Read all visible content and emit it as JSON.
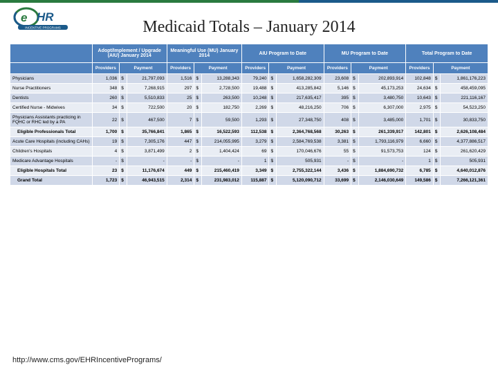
{
  "title": "Medicaid Totals – January 2014",
  "footer_link": "http://www.cms.gov/EHRIncentivePrograms/",
  "colors": {
    "header_bg": "#4f81bd",
    "header_fg": "#ffffff",
    "band_a": "#d0d8e8",
    "band_b": "#e9edf4",
    "border": "#ffffff",
    "green": "#2a7a3f",
    "blue": "#1b5a8a"
  },
  "column_groups": [
    {
      "label": "Adopt/Implement / Upgrade (AIU) January 2014"
    },
    {
      "label": "Meaningful Use (MU) January 2014"
    },
    {
      "label": "AIU Program to Date"
    },
    {
      "label": "MU Program to Date"
    },
    {
      "label": "Total Program to Date"
    }
  ],
  "sub_headers": {
    "providers": "Providers",
    "payment": "Payment"
  },
  "rows": [
    {
      "band": "a",
      "label": "Physicians",
      "cells": [
        "1,036",
        "$",
        "21,797,093",
        "1,516",
        "$",
        "13,288,343",
        "79,240",
        "$",
        "1,658,282,309",
        "23,608",
        "$",
        "202,893,914",
        "102,848",
        "$",
        "1,861,176,223"
      ]
    },
    {
      "band": "b",
      "label": "Nurse Practitioners",
      "cells": [
        "348",
        "$",
        "7,268,915",
        "297",
        "$",
        "2,728,500",
        "19,488",
        "$",
        "413,285,842",
        "5,146",
        "$",
        "45,173,253",
        "24,634",
        "$",
        "458,459,095"
      ]
    },
    {
      "band": "a",
      "label": "Dentists",
      "cells": [
        "260",
        "$",
        "5,510,833",
        "25",
        "$",
        "263,500",
        "10,248",
        "$",
        "217,635,417",
        "395",
        "$",
        "3,480,750",
        "10,643",
        "$",
        "221,116,167"
      ]
    },
    {
      "band": "b",
      "label": "Certified Nurse - Midwives",
      "cells": [
        "34",
        "$",
        "722,500",
        "20",
        "$",
        "182,750",
        "2,269",
        "$",
        "48,216,250",
        "706",
        "$",
        "6,307,000",
        "2,975",
        "$",
        "54,523,250"
      ]
    },
    {
      "band": "a",
      "label": "Physicians Assistants practicing in FQHC or RHC led by a PA",
      "cells": [
        "22",
        "$",
        "467,500",
        "7",
        "$",
        "59,500",
        "1,293",
        "$",
        "27,348,750",
        "408",
        "$",
        "3,485,000",
        "1,701",
        "$",
        "30,833,750"
      ]
    },
    {
      "band": "b",
      "label": "Eligible Professionals Total",
      "indent": true,
      "bold": true,
      "cells": [
        "1,700",
        "$",
        "35,766,841",
        "1,865",
        "$",
        "16,522,593",
        "112,538",
        "$",
        "2,364,768,568",
        "30,263",
        "$",
        "261,339,917",
        "142,801",
        "$",
        "2,626,108,484"
      ]
    },
    {
      "band": "a",
      "label": "Acute Care Hospitals (including CAHs)",
      "cells": [
        "19",
        "$",
        "7,305,176",
        "447",
        "$",
        "214,055,995",
        "3,279",
        "$",
        "2,584,769,538",
        "3,381",
        "$",
        "1,793,116,979",
        "6,660",
        "$",
        "4,377,886,517"
      ]
    },
    {
      "band": "b",
      "label": "Children's Hospitals",
      "cells": [
        "4",
        "$",
        "3,871,499",
        "2",
        "$",
        "1,404,424",
        "69",
        "$",
        "170,046,676",
        "55",
        "$",
        "91,573,753",
        "124",
        "$",
        "261,620,429"
      ]
    },
    {
      "band": "a",
      "label": "Medicare Advantage Hospitals",
      "cells": [
        "-",
        "$",
        "-",
        "-",
        "$",
        "-",
        "1",
        "$",
        "505,931",
        "-",
        "$",
        "-",
        "1",
        "$",
        "505,931"
      ]
    },
    {
      "band": "b",
      "label": "Eligible Hospitals Total",
      "indent": true,
      "bold": true,
      "cells": [
        "23",
        "$",
        "11,176,674",
        "449",
        "$",
        "215,460,419",
        "3,349",
        "$",
        "2,755,322,144",
        "3,436",
        "$",
        "1,884,690,732",
        "6,785",
        "$",
        "4,640,012,876"
      ]
    },
    {
      "band": "a",
      "label": "Grand Total",
      "indent": true,
      "bold": true,
      "cells": [
        "1,723",
        "$",
        "46,943,515",
        "2,314",
        "$",
        "231,983,012",
        "115,887",
        "$",
        "5,120,090,712",
        "33,699",
        "$",
        "2,146,030,649",
        "149,586",
        "$",
        "7,266,121,361"
      ]
    }
  ]
}
